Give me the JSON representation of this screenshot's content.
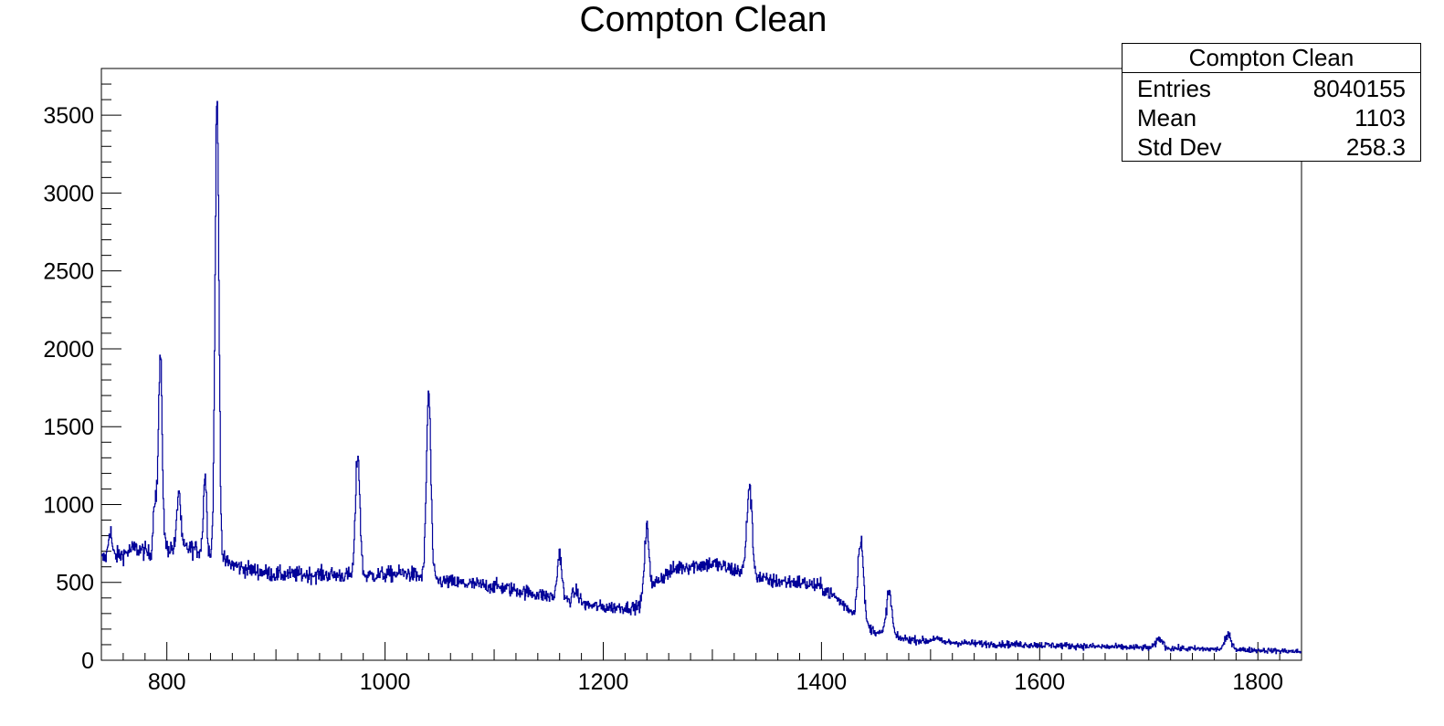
{
  "chart_data": {
    "type": "line",
    "title": "Compton Clean",
    "xlabel": "",
    "ylabel": "",
    "xlim": [
      740,
      1840
    ],
    "ylim": [
      0,
      3800
    ],
    "xticks": [
      800,
      1000,
      1200,
      1400,
      1600,
      1800
    ],
    "yticks": [
      0,
      500,
      1000,
      1500,
      2000,
      2500,
      3000,
      3500
    ],
    "xtick_labels": [
      "800",
      "1000",
      "1200",
      "1400",
      "1600",
      "1800"
    ],
    "ytick_labels": [
      "0",
      "500",
      "1000",
      "1500",
      "2000",
      "2500",
      "3000",
      "3500"
    ],
    "line_color": "#000099",
    "grid": false,
    "legend": "none",
    "continuum": [
      [
        740,
        650
      ],
      [
        760,
        680
      ],
      [
        770,
        720
      ],
      [
        780,
        700
      ],
      [
        790,
        650
      ],
      [
        800,
        720
      ],
      [
        820,
        720
      ],
      [
        835,
        700
      ],
      [
        850,
        640
      ],
      [
        870,
        590
      ],
      [
        900,
        550
      ],
      [
        950,
        550
      ],
      [
        975,
        540
      ],
      [
        1000,
        550
      ],
      [
        1020,
        560
      ],
      [
        1040,
        520
      ],
      [
        1060,
        500
      ],
      [
        1100,
        475
      ],
      [
        1120,
        450
      ],
      [
        1150,
        410
      ],
      [
        1180,
        360
      ],
      [
        1200,
        340
      ],
      [
        1230,
        340
      ],
      [
        1240,
        380
      ],
      [
        1250,
        520
      ],
      [
        1270,
        600
      ],
      [
        1300,
        620
      ],
      [
        1320,
        580
      ],
      [
        1335,
        560
      ],
      [
        1350,
        510
      ],
      [
        1380,
        500
      ],
      [
        1400,
        470
      ],
      [
        1410,
        420
      ],
      [
        1425,
        330
      ],
      [
        1440,
        220
      ],
      [
        1460,
        150
      ],
      [
        1500,
        120
      ],
      [
        1550,
        105
      ],
      [
        1600,
        98
      ],
      [
        1650,
        88
      ],
      [
        1700,
        80
      ],
      [
        1750,
        72
      ],
      [
        1800,
        65
      ],
      [
        1840,
        55
      ]
    ],
    "peaks": [
      {
        "x": 748,
        "height": 180,
        "sigma": 1.5
      },
      {
        "x": 789,
        "height": 380,
        "sigma": 1.5
      },
      {
        "x": 794,
        "height": 1250,
        "sigma": 1.8
      },
      {
        "x": 811,
        "height": 380,
        "sigma": 1.6
      },
      {
        "x": 835,
        "height": 490,
        "sigma": 1.5
      },
      {
        "x": 846,
        "height": 2920,
        "sigma": 1.8
      },
      {
        "x": 975,
        "height": 790,
        "sigma": 2.0
      },
      {
        "x": 1040,
        "height": 1200,
        "sigma": 2.0
      },
      {
        "x": 1160,
        "height": 300,
        "sigma": 2.0
      },
      {
        "x": 1175,
        "height": 70,
        "sigma": 3.0
      },
      {
        "x": 1240,
        "height": 460,
        "sigma": 2.2
      },
      {
        "x": 1334,
        "height": 560,
        "sigma": 2.3
      },
      {
        "x": 1436,
        "height": 540,
        "sigma": 2.5
      },
      {
        "x": 1462,
        "height": 290,
        "sigma": 2.5
      },
      {
        "x": 1504,
        "height": 25,
        "sigma": 3.0
      },
      {
        "x": 1710,
        "height": 60,
        "sigma": 3.0
      },
      {
        "x": 1773,
        "height": 90,
        "sigma": 3.0
      }
    ],
    "bin_width": 0.5
  },
  "stats_box": {
    "title": "Compton Clean",
    "entries_label": "Entries",
    "entries_value": "8040155",
    "mean_label": "Mean",
    "mean_value": "1103",
    "stddev_label": "Std Dev",
    "stddev_value": "258.3"
  }
}
